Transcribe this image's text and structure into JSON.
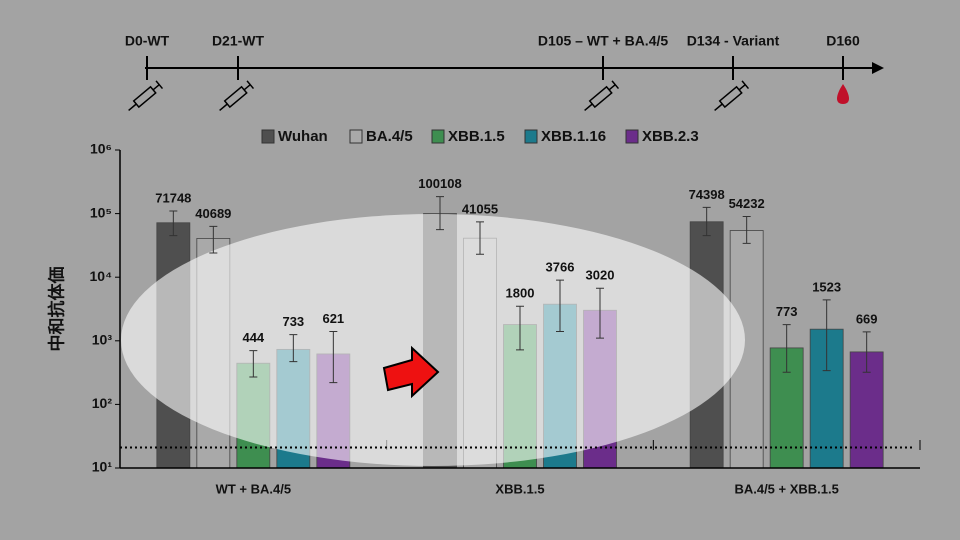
{
  "timeline": {
    "events": [
      "D0-WT",
      "D21-WT",
      "D105 – WT + BA.4/5",
      "D134 - Variant",
      "D160"
    ]
  },
  "chart_data": {
    "type": "bar",
    "y_label": "中和抗体価",
    "log_scale": true,
    "categories": [
      "WT + BA.4/5",
      "XBB.1.5",
      "BA.4/5 + XBB.1.5"
    ],
    "series": [
      {
        "name": "Wuhan",
        "color": "#4f4f4f",
        "values": [
          71748,
          100108,
          74398
        ],
        "error_low": [
          45000,
          56000,
          45000
        ],
        "error_high": [
          110000,
          185000,
          125000
        ]
      },
      {
        "name": "BA.4/5",
        "color": "#a9a9a9",
        "values": [
          40689,
          41055,
          54232
        ],
        "error_low": [
          24000,
          23000,
          34000
        ],
        "error_high": [
          63000,
          74000,
          90000
        ]
      },
      {
        "name": "XBB.1.5",
        "color": "#3e8e50",
        "values": [
          444,
          1800,
          773
        ],
        "error_low": [
          270,
          720,
          320
        ],
        "error_high": [
          700,
          3500,
          1800
        ]
      },
      {
        "name": "XBB.1.16",
        "color": "#1c7a8c",
        "values": [
          733,
          3766,
          1523
        ],
        "error_low": [
          470,
          1400,
          340
        ],
        "error_high": [
          1250,
          9000,
          4400
        ]
      },
      {
        "name": "XBB.2.3",
        "color": "#6b2d8a",
        "values": [
          621,
          3020,
          669
        ],
        "error_low": [
          220,
          1100,
          320
        ],
        "error_high": [
          1400,
          6700,
          1380
        ]
      }
    ],
    "threshold": 21,
    "ylim": [
      10,
      1000000
    ],
    "yticks": [
      {
        "value": 10,
        "label": "10¹"
      },
      {
        "value": 100,
        "label": "10²"
      },
      {
        "value": 1000,
        "label": "10³"
      },
      {
        "value": 10000,
        "label": "10⁴"
      },
      {
        "value": 100000,
        "label": "10⁵"
      },
      {
        "value": 1000000,
        "label": "10⁶"
      }
    ]
  }
}
